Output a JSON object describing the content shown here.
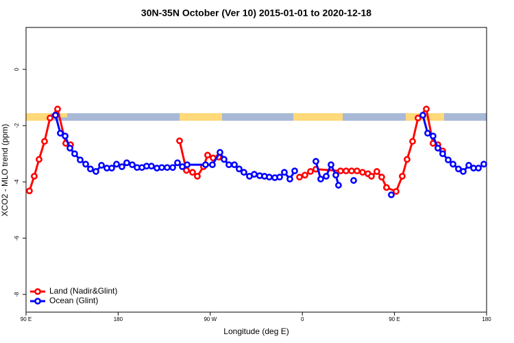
{
  "chart_data": {
    "type": "line",
    "title": "30N-35N October (Ver 10)   2015-01-01 to 2020-12-18",
    "x_label": "Longitude (deg E)",
    "y_label": "XCO2 - MLO trend (ppm)",
    "xlim": [
      90,
      540
    ],
    "ylim": [
      -8.63,
      1.49
    ],
    "xticks": [
      {
        "value": 90,
        "label": "90 E"
      },
      180,
      {
        "value": 270,
        "label": "90 W"
      },
      {
        "value": 360,
        "label": "0"
      },
      {
        "value": 450,
        "label": "90 E"
      },
      {
        "value": 540,
        "label": "180"
      }
    ],
    "yticks": [
      0,
      -2,
      -4,
      -6,
      -8
    ],
    "grid": false,
    "legend": "bottom-left",
    "series": [
      {
        "name": "Land (Nadir&Glint)",
        "color": "#ff0000",
        "x": [
          93.3,
          98.0,
          102.7,
          108.1,
          113.4,
          120.8,
          128.8,
          133.5,
          null,
          240.0,
          246.7,
          252.7,
          257.4,
          263.4,
          267.4,
          272.8,
          278.2,
          null,
          357.2,
          362.5,
          367.9,
          373.2,
          397.3,
          402.7,
          408.1,
          413.4,
          418.8,
          424.1,
          427.5,
          432.8,
          437.5,
          442.2,
          451.6,
          457.6,
          462.3,
          467.7,
          473.0,
          481.1,
          487.7,
          492.4,
          497.1
        ],
        "values": [
          -4.32,
          -3.8,
          -3.2,
          -2.56,
          -1.73,
          -1.41,
          -2.63,
          -2.68,
          null,
          -2.54,
          -3.59,
          -3.66,
          -3.8,
          -3.46,
          -3.05,
          -3.15,
          -3.12,
          null,
          -3.83,
          -3.76,
          -3.63,
          -3.55,
          -3.61,
          -3.61,
          -3.61,
          -3.61,
          -3.66,
          -3.71,
          -3.8,
          -3.63,
          -3.83,
          -4.2,
          -4.34,
          -3.8,
          -3.2,
          -2.56,
          -1.73,
          -1.41,
          -2.63,
          -2.68,
          -2.9
        ]
      },
      {
        "name": "Ocean (Glint)",
        "color": "#0000ff",
        "x": [
          118.8,
          123.5,
          128.2,
          132.9,
          137.5,
          142.9,
          148.3,
          152.9,
          158.3,
          163.7,
          169.0,
          173.7,
          178.4,
          183.7,
          188.4,
          193.8,
          198.5,
          203.2,
          207.8,
          212.5,
          217.9,
          222.6,
          227.9,
          233.3,
          238.0,
          242.7,
          247.4,
          265.4,
          272.1,
          279.5,
          283.5,
          288.2,
          293.6,
          298.2,
          302.9,
          308.3,
          313.0,
          318.3,
          323.0,
          327.7,
          333.1,
          337.8,
          342.4,
          347.8,
          352.5,
          null,
          373.2,
          377.9,
          383.3,
          388.0,
          392.7,
          395.3,
          null,
          410.1,
          null,
          446.9,
          null,
          477.7,
          482.4,
          487.7,
          492.4,
          497.1,
          502.5,
          507.2,
          512.5,
          517.2,
          522.6,
          527.3,
          532.0,
          537.3
        ],
        "values": [
          -1.63,
          -2.27,
          -2.37,
          -2.8,
          -3.0,
          -3.22,
          -3.37,
          -3.54,
          -3.63,
          -3.41,
          -3.51,
          -3.51,
          -3.37,
          -3.46,
          -3.32,
          -3.39,
          -3.49,
          -3.49,
          -3.44,
          -3.44,
          -3.51,
          -3.49,
          -3.49,
          -3.49,
          -3.32,
          -3.46,
          -3.39,
          -3.39,
          -3.39,
          -2.95,
          -3.2,
          -3.39,
          -3.39,
          -3.54,
          -3.66,
          -3.8,
          -3.73,
          -3.78,
          -3.8,
          -3.83,
          -3.85,
          -3.83,
          -3.66,
          -3.9,
          -3.61,
          null,
          -3.27,
          -3.9,
          -3.8,
          -3.39,
          -3.76,
          -4.12,
          null,
          -3.95,
          null,
          -4.46,
          null,
          -1.63,
          -2.27,
          -2.37,
          -2.8,
          -3.0,
          -3.22,
          -3.37,
          -3.54,
          -3.63,
          -3.41,
          -3.51,
          -3.51,
          -3.37
        ]
      }
    ]
  }
}
